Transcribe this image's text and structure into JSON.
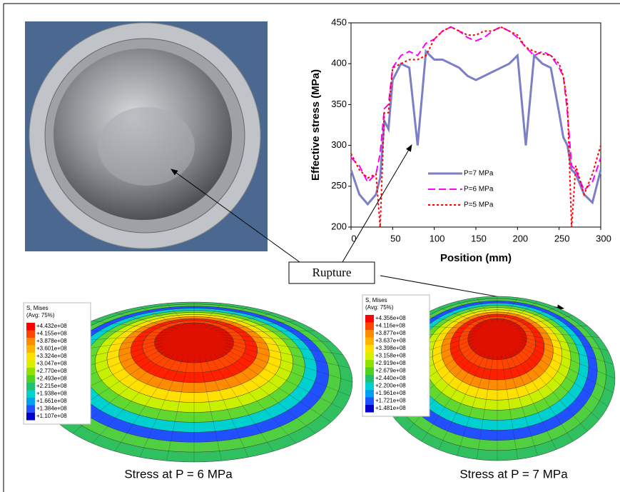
{
  "chart_data": {
    "type": "line",
    "ylabel": "Effective stress (MPa)",
    "xlabel": "Position (mm)",
    "x": [
      0,
      10,
      20,
      30,
      35,
      40,
      45,
      50,
      60,
      70,
      80,
      90,
      100,
      110,
      120,
      130,
      140,
      150,
      160,
      170,
      180,
      190,
      200,
      210,
      220,
      230,
      240,
      250,
      255,
      260,
      265,
      270,
      280,
      290,
      300
    ],
    "series": [
      {
        "name": "P=7 MPa",
        "color": "#7b80c6",
        "dash": "solid",
        "width": 3,
        "values": [
          270,
          240,
          228,
          240,
          260,
          330,
          320,
          380,
          400,
          395,
          300,
          415,
          405,
          405,
          400,
          395,
          385,
          380,
          385,
          390,
          395,
          400,
          410,
          300,
          410,
          400,
          395,
          340,
          310,
          300,
          270,
          265,
          240,
          230,
          270
        ]
      },
      {
        "name": "P=6 MPa",
        "color": "#ff00ff",
        "dash": "dashed",
        "width": 2,
        "values": [
          285,
          275,
          255,
          265,
          290,
          345,
          350,
          395,
          410,
          415,
          410,
          425,
          430,
          440,
          445,
          440,
          432,
          428,
          432,
          440,
          445,
          440,
          432,
          420,
          410,
          415,
          410,
          395,
          385,
          340,
          275,
          270,
          245,
          255,
          285
        ]
      },
      {
        "name": "P=5 MPa",
        "color": "#ff0000",
        "dash": "dotted",
        "width": 2,
        "values": [
          290,
          270,
          260,
          265,
          200,
          340,
          340,
          395,
          400,
          405,
          405,
          410,
          430,
          440,
          445,
          440,
          435,
          435,
          440,
          440,
          445,
          440,
          435,
          420,
          415,
          412,
          410,
          400,
          385,
          350,
          200,
          275,
          240,
          265,
          300
        ]
      }
    ],
    "xlim": [
      0,
      300
    ],
    "xticks": [
      0,
      50,
      100,
      150,
      200,
      250,
      300
    ],
    "ylim": [
      200,
      450
    ],
    "yticks": [
      200,
      250,
      300,
      350,
      400,
      450
    ]
  },
  "annotation": "Rupture",
  "contours": [
    {
      "title": "S, Mises",
      "subtitle": "(Avg: 75%)",
      "caption": "Stress at P = 6 MPa",
      "labels": [
        "+4.432e+08",
        "+4.155e+08",
        "+3.878e+08",
        "+3.601e+08",
        "+3.324e+08",
        "+3.047e+08",
        "+2.770e+08",
        "+2.493e+08",
        "+2.215e+08",
        "+1.938e+08",
        "+1.661e+08",
        "+1.384e+08",
        "+1.107e+08"
      ]
    },
    {
      "title": "S, Mises",
      "subtitle": "(Avg: 75%)",
      "caption": "Stress at P = 7 MPa",
      "labels": [
        "+4.356e+08",
        "+4.116e+08",
        "+3.877e+08",
        "+3.637e+08",
        "+3.398e+08",
        "+3.158e+08",
        "+2.919e+08",
        "+2.679e+08",
        "+2.440e+08",
        "+2.200e+08",
        "+1.961e+08",
        "+1.721e+08",
        "+1.481e+08"
      ]
    }
  ],
  "contour_colors": [
    "#ff0000",
    "#ff4500",
    "#ff8c00",
    "#ffb400",
    "#ffe000",
    "#d8f000",
    "#90e000",
    "#50d020",
    "#20c070",
    "#00d0d0",
    "#00a0f0",
    "#2050ff",
    "#0000c8"
  ]
}
